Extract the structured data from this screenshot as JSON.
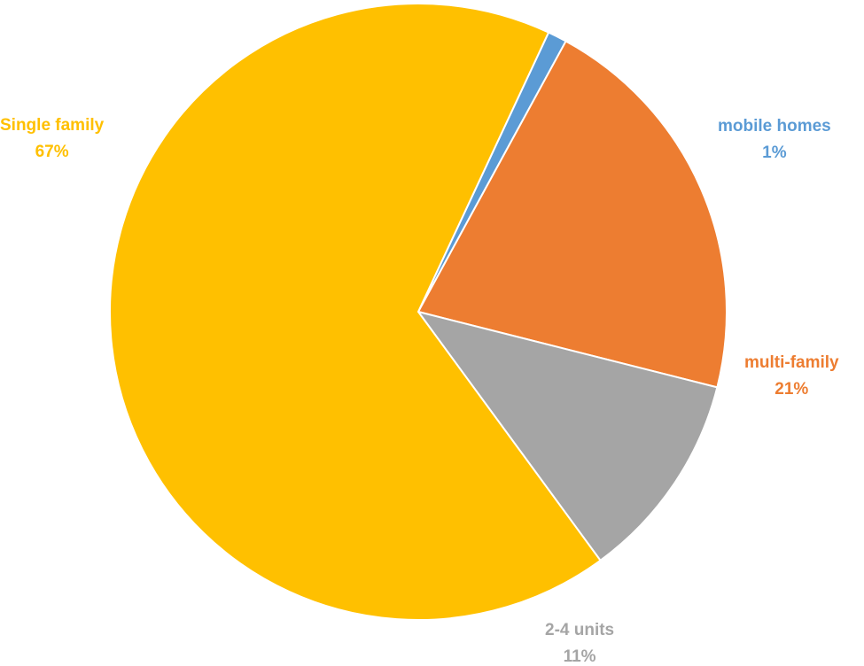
{
  "chart_data": {
    "type": "pie",
    "slices": [
      {
        "label": "mobile homes",
        "value": 1,
        "display": "1%",
        "color": "#5B9BD5"
      },
      {
        "label": "multi-family",
        "value": 21,
        "display": "21%",
        "color": "#ED7D31"
      },
      {
        "label": "2-4 units",
        "value": 11,
        "display": "11%",
        "color": "#A5A5A5"
      },
      {
        "label": "Single family",
        "value": 67,
        "display": "67%",
        "color": "#FFC000"
      }
    ],
    "start_angle_deg": 65,
    "direction": "clockwise",
    "legend": "none",
    "data_labels": "outside"
  }
}
